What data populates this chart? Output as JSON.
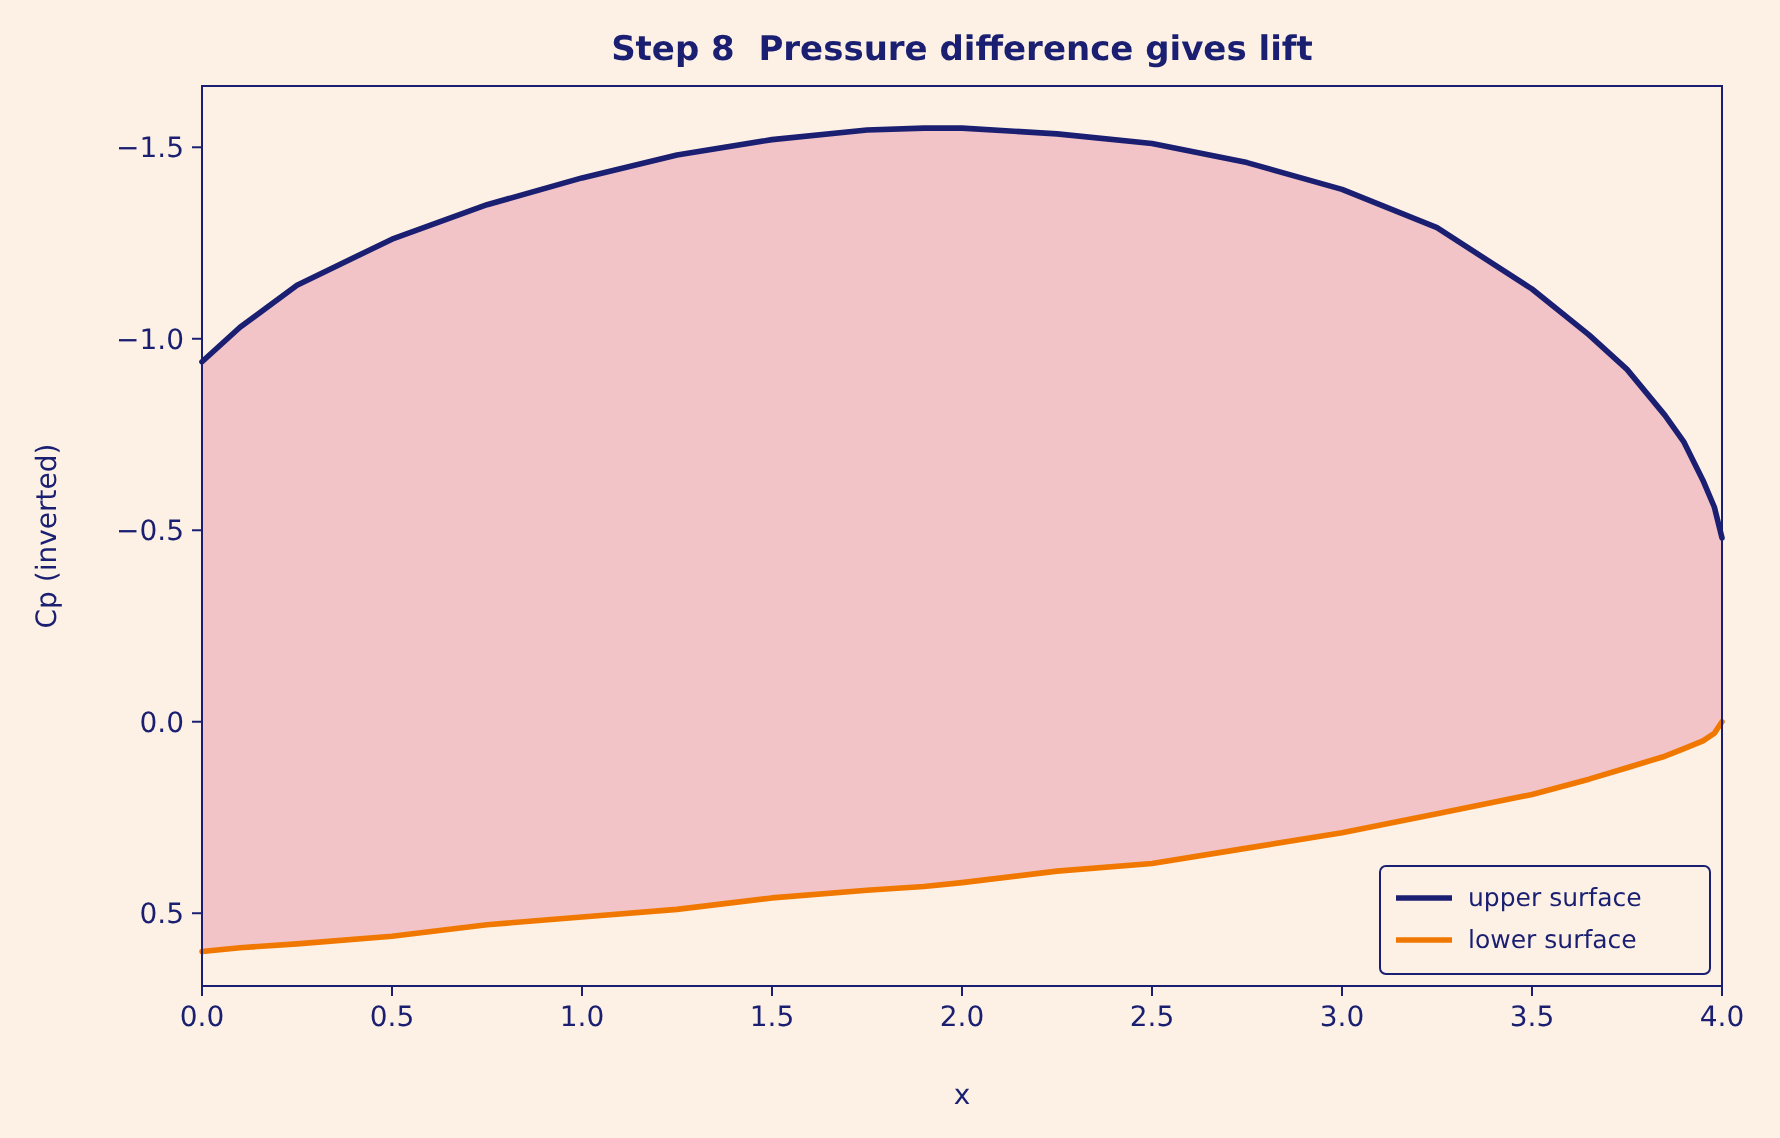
{
  "chart_data": {
    "type": "line",
    "title": "Step 8  Pressure difference gives lift",
    "xlabel": "x",
    "ylabel": "Cp (inverted)",
    "x": [
      0,
      0.1,
      0.25,
      0.5,
      0.75,
      1.0,
      1.25,
      1.5,
      1.75,
      1.9,
      2.0,
      2.25,
      2.5,
      2.75,
      3.0,
      3.25,
      3.5,
      3.65,
      3.75,
      3.85,
      3.9,
      3.95,
      3.98,
      4.0
    ],
    "series": [
      {
        "name": "upper surface",
        "color": "#1b1f72",
        "values": [
          -0.94,
          -1.03,
          -1.14,
          -1.26,
          -1.35,
          -1.42,
          -1.48,
          -1.52,
          -1.545,
          -1.55,
          -1.55,
          -1.535,
          -1.51,
          -1.46,
          -1.39,
          -1.29,
          -1.13,
          -1.01,
          -0.92,
          -0.8,
          -0.73,
          -0.63,
          -0.56,
          -0.48
        ],
        "upper": [
          -0.94,
          -1.03,
          -1.14,
          -1.26,
          -1.35,
          -1.42,
          -1.48,
          -1.52,
          -1.545,
          -1.55,
          -1.55,
          -1.535,
          -1.51,
          -1.46,
          -1.39,
          -1.29,
          -1.13,
          -1.01,
          -0.92,
          -0.8,
          -0.73,
          -0.63,
          -0.56,
          -0.48
        ],
        "lower": [
          0.6,
          0.59,
          0.58,
          0.56,
          0.53,
          0.51,
          0.49,
          0.46,
          0.44,
          0.43,
          0.42,
          0.39,
          0.37,
          0.33,
          0.29,
          0.24,
          0.19,
          0.15,
          0.12,
          0.09,
          0.07,
          0.05,
          0.03,
          0.0
        ]
      },
      {
        "name": "lower surface",
        "color": "#f07800",
        "values": [
          0.6,
          0.59,
          0.58,
          0.56,
          0.53,
          0.51,
          0.49,
          0.46,
          0.44,
          0.43,
          0.42,
          0.39,
          0.37,
          0.33,
          0.29,
          0.24,
          0.19,
          0.15,
          0.12,
          0.09,
          0.07,
          0.05,
          0.03,
          0.0
        ]
      }
    ],
    "xlim": [
      0,
      4
    ],
    "xticks": [
      {
        "value": 0,
        "label": "0.0"
      },
      0.5,
      {
        "value": 1,
        "label": "1.0"
      },
      1.5,
      {
        "value": 2,
        "label": "2.0"
      },
      2.5,
      {
        "value": 3,
        "label": "3.0"
      },
      3.5,
      {
        "value": 4,
        "label": "4.0"
      }
    ],
    "ylim": [
      0.69,
      -1.66
    ],
    "yticks": [
      0.5,
      {
        "value": 0,
        "label": "0.0"
      },
      -0.5,
      {
        "value": -1,
        "label": "−1.0"
      },
      -1.5
    ],
    "grid": false,
    "legend": "bottom right"
  }
}
